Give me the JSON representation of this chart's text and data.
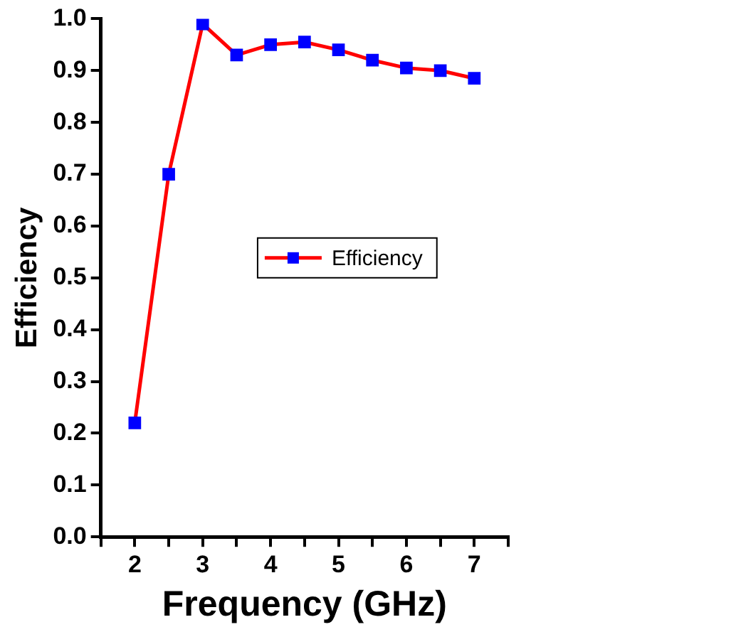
{
  "chart_data": {
    "type": "line",
    "xlabel": "Frequency (GHz)",
    "ylabel": "Efficiency",
    "x": [
      2,
      2.5,
      3,
      3.5,
      4,
      4.5,
      5,
      5.5,
      6,
      6.5,
      7
    ],
    "series": [
      {
        "name": "Efficiency",
        "color": "#ff0000",
        "colors": [
          "#0000ff",
          "#0000ff",
          "#0000ff",
          "#0000ff",
          "#0000ff",
          "#0000ff",
          "#0000ff",
          "#0000ff",
          "#0000ff",
          "#0000ff",
          "#0000ff"
        ],
        "values": [
          0.22,
          0.7,
          0.99,
          0.93,
          0.95,
          0.955,
          0.94,
          0.92,
          0.905,
          0.9,
          0.885
        ]
      }
    ],
    "xlim": [
      1.5,
      7.5
    ],
    "xticks": [
      {
        "value": 1.5,
        "label": null
      },
      2,
      {
        "value": 2.5,
        "label": null
      },
      3,
      {
        "value": 3.5,
        "label": null
      },
      4,
      {
        "value": 4.5,
        "label": null
      },
      5,
      {
        "value": 5.5,
        "label": null
      },
      6,
      {
        "value": 6.5,
        "label": null
      },
      7,
      {
        "value": 7.5,
        "label": null
      }
    ],
    "ylim": [
      0,
      1.0
    ],
    "yticks": [
      {
        "value": 0,
        "label": "0.0"
      },
      0.1,
      0.2,
      0.3,
      0.4,
      0.5,
      0.6,
      0.7,
      0.8,
      0.9,
      {
        "value": 1,
        "label": "1.0"
      }
    ],
    "marker": "square",
    "line_style": "solid",
    "grid": false,
    "legend": "right"
  }
}
